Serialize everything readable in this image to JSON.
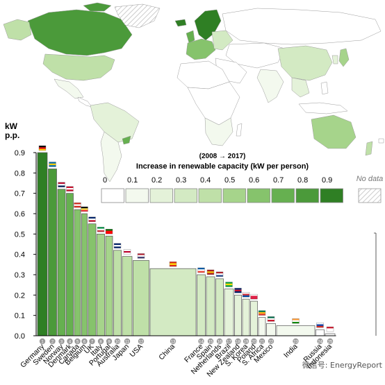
{
  "colors": {
    "bins": [
      "#ffffff",
      "#f3f9ee",
      "#e4f2d9",
      "#d3eac3",
      "#bfe0a8",
      "#a6d48b",
      "#86c36c",
      "#66b050",
      "#4b9a3a",
      "#2f7f24"
    ],
    "nodata_hatch": "#bbbbbb",
    "axis": "#000000",
    "bar_stroke": "#555555",
    "ocean": "#ffffff",
    "land_stroke": "#9a9a9a"
  },
  "legend": {
    "period": "(2008 → 2017)",
    "title": "Increase in renewable capacity (kW per person)",
    "labels": [
      "0",
      "0.1",
      "0.2",
      "0.3",
      "0.4",
      "0.5",
      "0.6",
      "0.7",
      "0.8",
      "0.9"
    ],
    "nodata_label": "No data"
  },
  "watermark": "微信号: EnergyReport",
  "chart_data": {
    "type": "bar",
    "ylabel": "kW\np.p.",
    "ylim": [
      0,
      0.9
    ],
    "yticks": [
      "0.0",
      "0.1",
      "0.2",
      "0.3",
      "0.4",
      "0.5",
      "0.6",
      "0.7",
      "0.8",
      "0.9"
    ],
    "bar_width_meaning": "population",
    "categories": [
      "Germany",
      "Sweden",
      "Norway",
      "Denmark",
      "Canada",
      "Belgium",
      "UK",
      "Italy",
      "Portugal",
      "Australia",
      "Japan",
      "USA",
      "China",
      "France",
      "Spain",
      "Netherlands",
      "Brazil",
      "New Zealand",
      "S. Korea",
      "Poland",
      "S. Africa",
      "Mexico",
      "India",
      "Russia",
      "Indonesia"
    ],
    "numbers": [
      "1",
      "2",
      "3",
      "4",
      "5",
      "6",
      "7",
      "8",
      "9",
      "10",
      "11",
      "12",
      "13",
      "14",
      "15",
      "16",
      "17",
      "18",
      "19",
      "20",
      "21",
      "22",
      "23",
      "24",
      "25"
    ],
    "values": [
      0.9,
      0.82,
      0.72,
      0.7,
      0.62,
      0.6,
      0.55,
      0.5,
      0.49,
      0.42,
      0.39,
      0.37,
      0.33,
      0.3,
      0.29,
      0.28,
      0.23,
      0.2,
      0.18,
      0.17,
      0.09,
      0.06,
      0.05,
      0.03,
      0.01
    ],
    "widths": [
      14,
      12,
      11,
      10,
      9,
      8,
      11,
      11,
      10,
      11,
      14,
      23,
      66,
      12,
      12,
      11,
      13,
      10,
      10,
      10,
      10,
      13,
      55,
      12,
      14
    ],
    "flags": [
      "de",
      "se",
      "no",
      "dk",
      "ca",
      "be",
      "gb",
      "it",
      "pt",
      "au",
      "jp",
      "us",
      "cn",
      "fr",
      "es",
      "nl",
      "br",
      "nz",
      "kr",
      "pl",
      "za",
      "mx",
      "in",
      "ru",
      "id"
    ]
  }
}
